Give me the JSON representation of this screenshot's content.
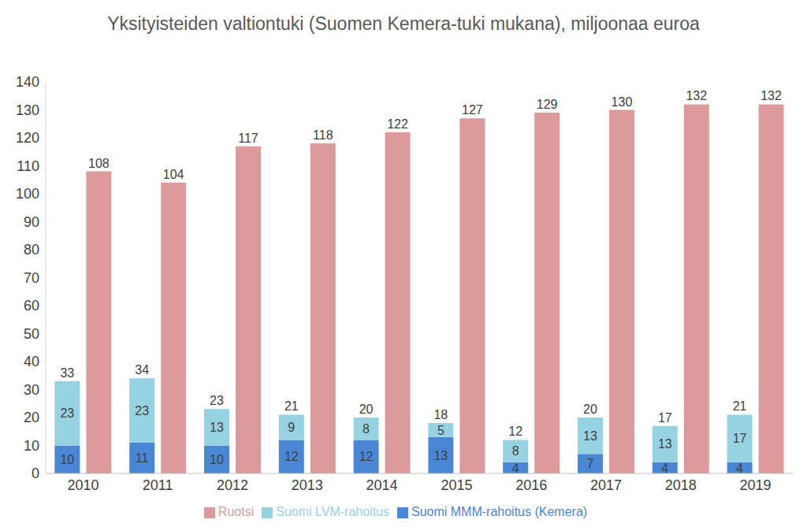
{
  "chart_data": {
    "type": "bar",
    "title": "Yksityisteiden valtiontuki (Suomen Kemera-tuki mukana), miljoonaa euroa",
    "categories": [
      "2010",
      "2011",
      "2012",
      "2013",
      "2014",
      "2015",
      "2016",
      "2017",
      "2018",
      "2019"
    ],
    "series": [
      {
        "name": "Suomi MMM-rahoitus (Kemera)",
        "color": "#4a86d6",
        "stacked": true,
        "values": [
          10,
          11,
          10,
          12,
          12,
          13,
          4,
          7,
          4,
          4
        ]
      },
      {
        "name": "Suomi LVM-rahoitus",
        "color": "#97d2e2",
        "stacked": true,
        "values": [
          23,
          23,
          13,
          9,
          8,
          5,
          8,
          13,
          13,
          17
        ]
      },
      {
        "name": "Ruotsi",
        "color": "#dc9a9a",
        "stacked": false,
        "values": [
          108,
          104,
          117,
          118,
          122,
          127,
          129,
          130,
          132,
          132
        ]
      }
    ],
    "totals": [
      33,
      34,
      23,
      21,
      20,
      18,
      12,
      20,
      17,
      21
    ],
    "ylim": [
      0,
      140
    ],
    "yticks": [
      0,
      10,
      20,
      30,
      40,
      50,
      60,
      70,
      80,
      90,
      100,
      110,
      120,
      130,
      140
    ],
    "grid": false,
    "data_labels": true,
    "legend": "bottom"
  }
}
